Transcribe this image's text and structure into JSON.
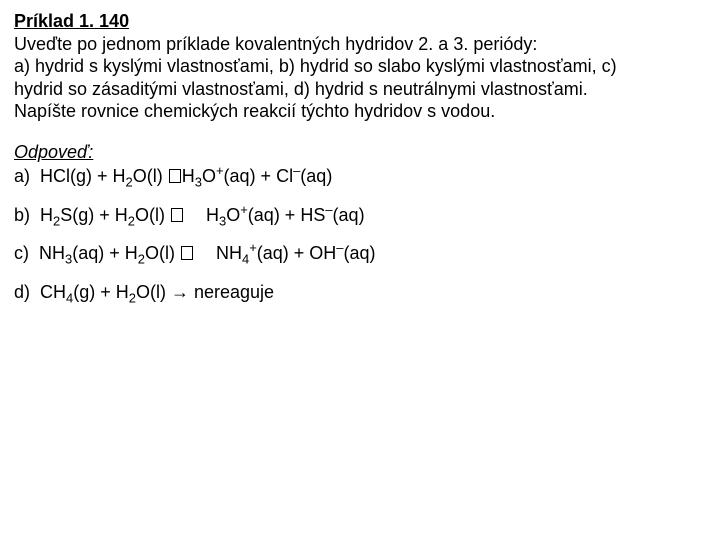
{
  "title": "Príklad 1. 140",
  "question_l1": "Uveďte po jednom príklade kovalentných hydridov 2. a 3. periódy:",
  "question_l2": "a) hydrid s kyslými vlastnosťami, b) hydrid so slabo kyslými vlastnosťami, c)",
  "question_l3": "hydrid so zásaditými vlastnosťami, d) hydrid s neutrálnymi vlastnosťami.",
  "question_l4": "Napíšte rovnice chemických reakcií týchto hydridov s vodou.",
  "answer_label": "Odpoveď:",
  "a_pre": "a)  HCl(g) + H",
  "a_mid1": "O(l) ",
  "a_mid1b": "H",
  "a_mid2": "O",
  "a_mid3": "(aq) + Cl",
  "a_end": "(aq)",
  "b_pre": "b)  H",
  "b_mid0": "S(g) + H",
  "b_mid1": "O(l) ",
  "b_mid2": "H",
  "b_mid3": "O",
  "b_mid4": "(aq) + HS",
  "b_end": "(aq)",
  "c_pre": "c)  NH",
  "c_mid0": "(aq) + H",
  "c_mid1": "O(l) ",
  "c_mid2": "NH",
  "c_mid3": "(aq) + OH",
  "c_end": "(aq)",
  "d_pre": "d)  CH",
  "d_mid0": "(g) + H",
  "d_mid1": "O(l) ",
  "d_end": " nereaguje",
  "sub2": "2",
  "sub3": "3",
  "sub4": "4",
  "sup_plus": "+",
  "sup_minus": "–",
  "arrow": "→"
}
